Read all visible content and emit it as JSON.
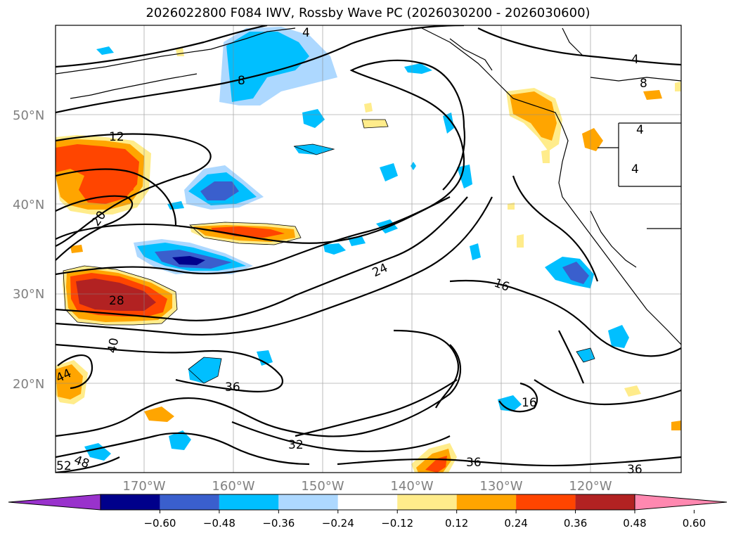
{
  "title": "2026022800 F084 IWV, Rossby Wave PC (2026030200 - 2026030600)",
  "latitude_labels": [
    "50°N",
    "40°N",
    "30°N",
    "20°N"
  ],
  "longitude_labels": [
    "170°W",
    "160°W",
    "150°W",
    "140°W",
    "130°W",
    "120°W"
  ],
  "contour_labels": [
    "4",
    "8",
    "8",
    "4",
    "12",
    "20",
    "28",
    "40",
    "44",
    "52",
    "48",
    "36",
    "32",
    "24",
    "16",
    "16",
    "36",
    "36"
  ],
  "colorbar": {
    "ticks": [
      "−0.60",
      "−0.48",
      "−0.36",
      "−0.24",
      "−0.12",
      "0.12",
      "0.24",
      "0.36",
      "0.48",
      "0.60"
    ],
    "colors": [
      "#9932cc",
      "#00008b",
      "#3a5fcd",
      "#00bfff",
      "#add8ff",
      "#ffffff",
      "#ffec8b",
      "#ffa500",
      "#ff4500",
      "#b22222",
      "#ff88b0"
    ]
  },
  "colors": {
    "neg_dark": "#00008b",
    "neg_mid": "#3a5fcd",
    "neg": "#00bfff",
    "neg_light": "#add8ff",
    "pos_light": "#ffec8b",
    "pos": "#ffa500",
    "pos_mid": "#ff4500",
    "pos_dark": "#b22222"
  }
}
